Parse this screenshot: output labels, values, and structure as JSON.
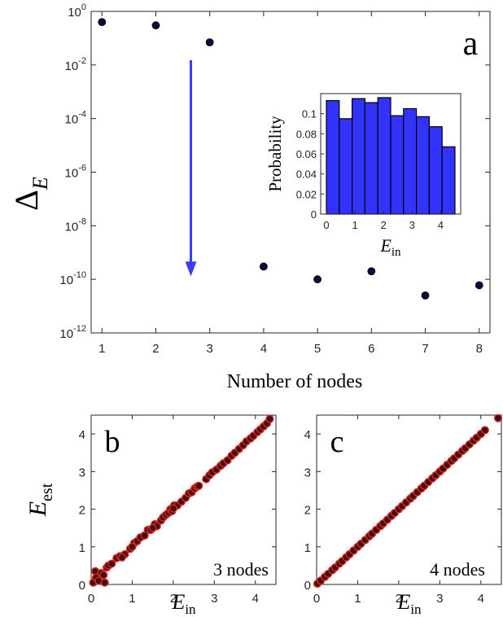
{
  "chart_data": [
    {
      "panel": "a",
      "type": "scatter",
      "panel_label": "a",
      "xlabel": "Number of nodes",
      "ylabel": "Δ",
      "ylabel_sub": "E",
      "yscale": "log",
      "xlim": [
        0.8,
        8.2
      ],
      "ylim": [
        1e-12,
        1
      ],
      "xticks": [
        "1",
        "2",
        "3",
        "4",
        "5",
        "6",
        "7",
        "8"
      ],
      "yticks": [
        {
          "base": "10",
          "exp": "0",
          "value": 1
        },
        {
          "base": "10",
          "exp": "-2",
          "value": 0.01
        },
        {
          "base": "10",
          "exp": "-4",
          "value": 0.0001
        },
        {
          "base": "10",
          "exp": "-6",
          "value": 1e-06
        },
        {
          "base": "10",
          "exp": "-8",
          "value": 1e-08
        },
        {
          "base": "10",
          "exp": "-10",
          "value": 1e-10
        },
        {
          "base": "10",
          "exp": "-12",
          "value": 1e-12
        }
      ],
      "marker_color": "#0a0a3c",
      "arrow_color": "#3b3bff",
      "arrow": {
        "x": 2.65,
        "y_from": 0.015,
        "y_to": 1.5e-10
      },
      "points": [
        {
          "x": 1,
          "y": 0.4
        },
        {
          "x": 2,
          "y": 0.3
        },
        {
          "x": 3,
          "y": 0.07
        },
        {
          "x": 4,
          "y": 3e-10
        },
        {
          "x": 5,
          "y": 1e-10
        },
        {
          "x": 6,
          "y": 2e-10
        },
        {
          "x": 7,
          "y": 2.5e-11
        },
        {
          "x": 8,
          "y": 6e-11
        }
      ]
    },
    {
      "panel": "a-inset",
      "type": "bar",
      "xlabel": "E",
      "xlabel_sub": "in",
      "ylabel": "Probability",
      "xlim": [
        -0.2,
        4.7
      ],
      "ylim": [
        0,
        0.12
      ],
      "xticks": [
        "0",
        "1",
        "2",
        "3",
        "4"
      ],
      "yticks": [
        "0",
        "0.02",
        "0.04",
        "0.06",
        "0.08",
        "0.1"
      ],
      "bar_color": "#3333ff",
      "bin_width": 0.45,
      "bin_starts": [
        0,
        0.45,
        0.9,
        1.35,
        1.8,
        2.25,
        2.7,
        3.15,
        3.6,
        4.05
      ],
      "values": [
        0.113,
        0.095,
        0.115,
        0.111,
        0.116,
        0.098,
        0.105,
        0.097,
        0.087,
        0.067
      ]
    },
    {
      "panel": "b",
      "type": "scatter",
      "panel_label": "b",
      "annotation": "3 nodes",
      "xlabel": "E",
      "xlabel_sub": "in",
      "ylabel": "E",
      "ylabel_sub": "est",
      "xlim": [
        0,
        4.5
      ],
      "ylim": [
        0,
        4.5
      ],
      "xticks": [
        "0",
        "1",
        "2",
        "3",
        "4"
      ],
      "yticks": [
        "0",
        "1",
        "2",
        "3",
        "4"
      ],
      "marker_fill": "#3a1010",
      "marker_edge": "#d42020",
      "points": [
        [
          0.05,
          0.05
        ],
        [
          0.1,
          0.35
        ],
        [
          0.12,
          0.18
        ],
        [
          0.18,
          0.1
        ],
        [
          0.25,
          0.3
        ],
        [
          0.3,
          0.25
        ],
        [
          0.33,
          0.05
        ],
        [
          0.38,
          0.45
        ],
        [
          0.42,
          0.5
        ],
        [
          0.5,
          0.55
        ],
        [
          0.62,
          0.7
        ],
        [
          0.7,
          0.75
        ],
        [
          0.82,
          0.8
        ],
        [
          0.95,
          0.95
        ],
        [
          1.05,
          1.1
        ],
        [
          1.12,
          1.15
        ],
        [
          1.2,
          1.25
        ],
        [
          1.3,
          1.3
        ],
        [
          1.38,
          1.45
        ],
        [
          1.45,
          1.45
        ],
        [
          1.55,
          1.6
        ],
        [
          1.6,
          1.55
        ],
        [
          1.7,
          1.7
        ],
        [
          1.75,
          1.78
        ],
        [
          1.82,
          1.85
        ],
        [
          1.88,
          1.9
        ],
        [
          1.93,
          2.0
        ],
        [
          1.97,
          1.95
        ],
        [
          2.02,
          2.1
        ],
        [
          2.1,
          2.1
        ],
        [
          2.2,
          2.2
        ],
        [
          2.3,
          2.3
        ],
        [
          2.38,
          2.42
        ],
        [
          2.45,
          2.45
        ],
        [
          2.52,
          2.55
        ],
        [
          2.58,
          2.6
        ],
        [
          2.62,
          2.62
        ],
        [
          2.8,
          2.8
        ],
        [
          2.88,
          2.9
        ],
        [
          2.95,
          2.98
        ],
        [
          3.05,
          3.05
        ],
        [
          3.15,
          3.15
        ],
        [
          3.22,
          3.22
        ],
        [
          3.32,
          3.3
        ],
        [
          3.42,
          3.42
        ],
        [
          3.5,
          3.5
        ],
        [
          3.6,
          3.6
        ],
        [
          3.7,
          3.7
        ],
        [
          3.78,
          3.8
        ],
        [
          3.88,
          3.88
        ],
        [
          3.95,
          3.95
        ],
        [
          4.05,
          4.05
        ],
        [
          4.12,
          4.12
        ],
        [
          4.2,
          4.2
        ],
        [
          4.28,
          4.28
        ],
        [
          4.35,
          4.4
        ],
        [
          1.0,
          1.0
        ],
        [
          1.5,
          1.5
        ],
        [
          0.75,
          0.72
        ],
        [
          2.0,
          2.02
        ]
      ]
    },
    {
      "panel": "c",
      "type": "scatter",
      "panel_label": "c",
      "annotation": "4 nodes",
      "xlabel": "E",
      "xlabel_sub": "in",
      "ylabel": "",
      "xlim": [
        0,
        4.5
      ],
      "ylim": [
        0,
        4.5
      ],
      "xticks": [
        "0",
        "1",
        "2",
        "3",
        "4"
      ],
      "yticks": [
        "0",
        "1",
        "2",
        "3",
        "4"
      ],
      "marker_fill": "#3a1010",
      "marker_edge": "#d42020",
      "points": [
        [
          0.02,
          0.02
        ],
        [
          0.1,
          0.1
        ],
        [
          0.2,
          0.2
        ],
        [
          0.28,
          0.28
        ],
        [
          0.38,
          0.38
        ],
        [
          0.45,
          0.45
        ],
        [
          0.55,
          0.55
        ],
        [
          0.62,
          0.62
        ],
        [
          0.72,
          0.72
        ],
        [
          0.8,
          0.8
        ],
        [
          0.9,
          0.9
        ],
        [
          1.0,
          1.0
        ],
        [
          1.08,
          1.08
        ],
        [
          1.18,
          1.18
        ],
        [
          1.28,
          1.28
        ],
        [
          1.35,
          1.35
        ],
        [
          1.45,
          1.45
        ],
        [
          1.55,
          1.55
        ],
        [
          1.62,
          1.62
        ],
        [
          1.72,
          1.72
        ],
        [
          1.82,
          1.82
        ],
        [
          1.9,
          1.9
        ],
        [
          2.0,
          2.0
        ],
        [
          2.08,
          2.08
        ],
        [
          2.18,
          2.18
        ],
        [
          2.28,
          2.28
        ],
        [
          2.35,
          2.35
        ],
        [
          2.45,
          2.45
        ],
        [
          2.55,
          2.55
        ],
        [
          2.62,
          2.62
        ],
        [
          2.72,
          2.72
        ],
        [
          2.82,
          2.82
        ],
        [
          2.9,
          2.9
        ],
        [
          3.0,
          3.0
        ],
        [
          3.08,
          3.08
        ],
        [
          3.18,
          3.18
        ],
        [
          3.28,
          3.28
        ],
        [
          3.35,
          3.35
        ],
        [
          3.45,
          3.45
        ],
        [
          3.55,
          3.55
        ],
        [
          3.62,
          3.62
        ],
        [
          3.72,
          3.72
        ],
        [
          3.82,
          3.82
        ],
        [
          3.9,
          3.9
        ],
        [
          4.0,
          4.0
        ],
        [
          4.1,
          4.1
        ],
        [
          4.42,
          4.42
        ]
      ]
    }
  ]
}
